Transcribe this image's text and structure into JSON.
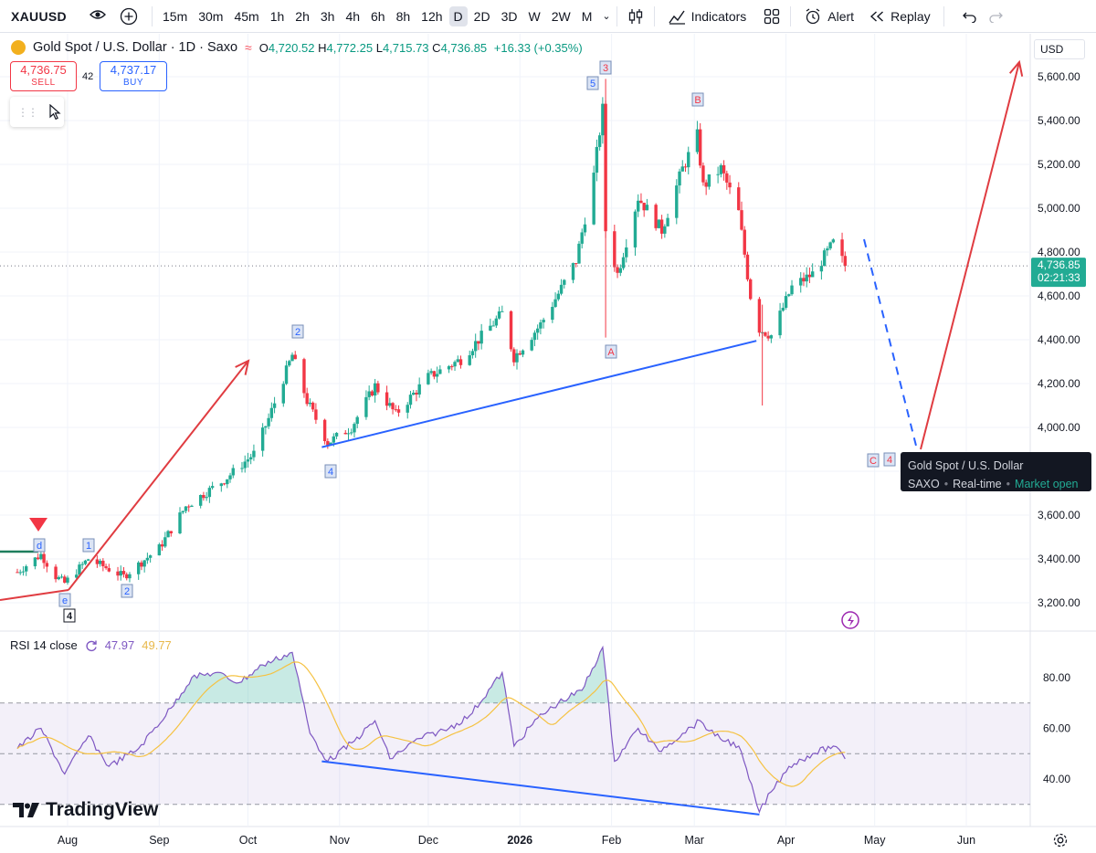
{
  "toolbar": {
    "symbol": "XAUUSD",
    "intervals": [
      "15m",
      "30m",
      "45m",
      "1h",
      "2h",
      "3h",
      "4h",
      "6h",
      "8h",
      "12h",
      "D",
      "2D",
      "3D",
      "W",
      "2W",
      "M"
    ],
    "active_interval": "D",
    "indicators_label": "Indicators",
    "alert_label": "Alert",
    "replay_label": "Replay"
  },
  "legend": {
    "title": "Gold Spot / U.S. Dollar · 1D · Saxo",
    "o_label": "O",
    "o_value": "4,720.52",
    "h_label": "H",
    "h_value": "4,772.25",
    "l_label": "L",
    "l_value": "4,715.73",
    "c_label": "C",
    "c_value": "4,736.85",
    "change": "+16.33 (+0.35%)"
  },
  "trade": {
    "sell_price": "4,736.75",
    "sell_label": "SELL",
    "buy_price": "4,737.17",
    "buy_label": "BUY",
    "spread": "42"
  },
  "currency": "USD",
  "price_tag": {
    "price": "4,736.85",
    "countdown": "02:21:33"
  },
  "tooltip": {
    "title": "Gold Spot / U.S. Dollar",
    "source": "SAXO",
    "feed": "Real-time",
    "status": "Market open"
  },
  "rsi": {
    "label": "RSI 14 close",
    "value": "47.97",
    "ma_value": "49.77"
  },
  "watermark": "TradingView",
  "colors": {
    "up": "#22ab94",
    "down": "#f23645",
    "trend": "#2962ff",
    "rsi": "#7e57c2",
    "rsi_ma": "#f5c242",
    "annotation_arrow": "#e03c41"
  },
  "chart_data": [
    {
      "type": "candlestick",
      "title": "Gold Spot / U.S. Dollar · 1D · Saxo",
      "x_tick_labels": [
        "Aug",
        "Sep",
        "Oct",
        "Nov",
        "Dec",
        "2026",
        "Feb",
        "Mar",
        "Apr",
        "May",
        "Jun"
      ],
      "y_tick_labels": [
        "3,200.00",
        "3,400.00",
        "3,600.00",
        "3,800.00",
        "4,000.00",
        "4,200.00",
        "4,400.00",
        "4,600.00",
        "4,800.00",
        "5,000.00",
        "5,200.00",
        "5,400.00",
        "5,600.00"
      ],
      "ylim": [
        3100,
        5680
      ],
      "last_price": 4736.85,
      "close_path": [
        {
          "date": "2025-07-15",
          "close": 3340
        },
        {
          "date": "2025-07-23",
          "close": 3420
        },
        {
          "date": "2025-07-28",
          "close": 3320
        },
        {
          "date": "2025-07-31",
          "close": 3290
        },
        {
          "date": "2025-08-08",
          "close": 3400
        },
        {
          "date": "2025-08-20",
          "close": 3320
        },
        {
          "date": "2025-09-01",
          "close": 3450
        },
        {
          "date": "2025-09-10",
          "close": 3640
        },
        {
          "date": "2025-09-23",
          "close": 3760
        },
        {
          "date": "2025-10-03",
          "close": 3880
        },
        {
          "date": "2025-10-08",
          "close": 4040
        },
        {
          "date": "2025-10-16",
          "close": 4330
        },
        {
          "date": "2025-10-21",
          "close": 4120
        },
        {
          "date": "2025-10-28",
          "close": 3930
        },
        {
          "date": "2025-11-05",
          "close": 4000
        },
        {
          "date": "2025-11-13",
          "close": 4190
        },
        {
          "date": "2025-11-20",
          "close": 4060
        },
        {
          "date": "2025-12-01",
          "close": 4230
        },
        {
          "date": "2025-12-12",
          "close": 4310
        },
        {
          "date": "2025-12-26",
          "close": 4520
        },
        {
          "date": "2025-12-30",
          "close": 4320
        },
        {
          "date": "2026-01-08",
          "close": 4470
        },
        {
          "date": "2026-01-14",
          "close": 4610
        },
        {
          "date": "2026-01-20",
          "close": 4760
        },
        {
          "date": "2026-01-26",
          "close": 5150
        },
        {
          "date": "2026-01-29",
          "close": 5450
        },
        {
          "date": "2026-01-30",
          "close": 4900
        },
        {
          "date": "2026-02-03",
          "close": 4700
        },
        {
          "date": "2026-02-10",
          "close": 5050
        },
        {
          "date": "2026-02-18",
          "close": 4900
        },
        {
          "date": "2026-02-25",
          "close": 5180
        },
        {
          "date": "2026-03-02",
          "close": 5330
        },
        {
          "date": "2026-03-04",
          "close": 5100
        },
        {
          "date": "2026-03-10",
          "close": 5180
        },
        {
          "date": "2026-03-16",
          "close": 4980
        },
        {
          "date": "2026-03-20",
          "close": 4600
        },
        {
          "date": "2026-03-23",
          "close": 4450
        },
        {
          "date": "2026-03-27",
          "close": 4420
        },
        {
          "date": "2026-04-03",
          "close": 4640
        },
        {
          "date": "2026-04-10",
          "close": 4700
        },
        {
          "date": "2026-04-17",
          "close": 4840
        },
        {
          "date": "2026-04-21",
          "close": 4736.85
        }
      ],
      "wave_labels": [
        "d",
        "e",
        "4",
        "1",
        "2",
        "2",
        "4",
        "5",
        "3",
        "A",
        "B",
        "C",
        "4"
      ],
      "annotations": {
        "trendlines": "blue lines under the Oct-Nov low and Feb-Mar low",
        "arrows": "red arrows: up from Jul low to Oct; projected drop to ~3,900 then up to ~5,600"
      }
    },
    {
      "type": "line",
      "title": "RSI 14 close",
      "y_tick_labels": [
        "40.00",
        "60.00",
        "80.00"
      ],
      "ylim": [
        22,
        95
      ],
      "bands": [
        30,
        70
      ],
      "series": [
        {
          "name": "RSI",
          "last": 47.97,
          "values": [
            {
              "date": "2025-07-15",
              "v": 52
            },
            {
              "date": "2025-07-23",
              "v": 60
            },
            {
              "date": "2025-07-31",
              "v": 42
            },
            {
              "date": "2025-08-08",
              "v": 57
            },
            {
              "date": "2025-08-15",
              "v": 45
            },
            {
              "date": "2025-08-25",
              "v": 52
            },
            {
              "date": "2025-09-05",
              "v": 68
            },
            {
              "date": "2025-09-12",
              "v": 80
            },
            {
              "date": "2025-09-20",
              "v": 82
            },
            {
              "date": "2025-09-28",
              "v": 78
            },
            {
              "date": "2025-10-06",
              "v": 85
            },
            {
              "date": "2025-10-16",
              "v": 90
            },
            {
              "date": "2025-10-22",
              "v": 58
            },
            {
              "date": "2025-10-28",
              "v": 47
            },
            {
              "date": "2025-11-06",
              "v": 55
            },
            {
              "date": "2025-11-13",
              "v": 63
            },
            {
              "date": "2025-11-18",
              "v": 48
            },
            {
              "date": "2025-11-28",
              "v": 56
            },
            {
              "date": "2025-12-08",
              "v": 60
            },
            {
              "date": "2025-12-15",
              "v": 65
            },
            {
              "date": "2025-12-26",
              "v": 82
            },
            {
              "date": "2025-12-30",
              "v": 53
            },
            {
              "date": "2026-01-07",
              "v": 64
            },
            {
              "date": "2026-01-14",
              "v": 70
            },
            {
              "date": "2026-01-22",
              "v": 75
            },
            {
              "date": "2026-01-29",
              "v": 92
            },
            {
              "date": "2026-02-02",
              "v": 47
            },
            {
              "date": "2026-02-10",
              "v": 60
            },
            {
              "date": "2026-02-17",
              "v": 51
            },
            {
              "date": "2026-02-25",
              "v": 58
            },
            {
              "date": "2026-03-03",
              "v": 63
            },
            {
              "date": "2026-03-08",
              "v": 57
            },
            {
              "date": "2026-03-16",
              "v": 53
            },
            {
              "date": "2026-03-23",
              "v": 27
            },
            {
              "date": "2026-03-27",
              "v": 35
            },
            {
              "date": "2026-04-02",
              "v": 45
            },
            {
              "date": "2026-04-10",
              "v": 50
            },
            {
              "date": "2026-04-17",
              "v": 53
            },
            {
              "date": "2026-04-21",
              "v": 47.97
            }
          ]
        },
        {
          "name": "RSI MA",
          "last": 49.77
        }
      ]
    }
  ]
}
